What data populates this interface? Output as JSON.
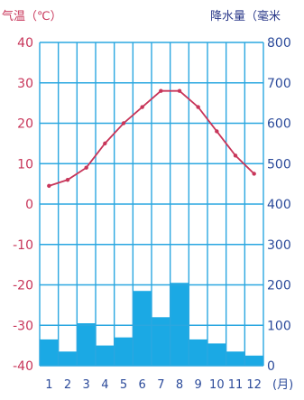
{
  "chart_data": {
    "type": "bar+line",
    "left_axis_label": "气温（℃）",
    "right_axis_label": "降水量（毫米",
    "x_unit_label": "(月)",
    "categories": [
      "1",
      "2",
      "3",
      "4",
      "5",
      "6",
      "7",
      "8",
      "9",
      "10",
      "11",
      "12"
    ],
    "temperature": {
      "unit": "℃",
      "ylim": [
        -40,
        40
      ],
      "ticks": [
        40,
        30,
        20,
        10,
        0,
        -10,
        -20,
        -30,
        -40
      ],
      "values": [
        4.5,
        6,
        9,
        15,
        20,
        24,
        28,
        28,
        24,
        18,
        12,
        7.5
      ]
    },
    "precipitation": {
      "unit": "毫米",
      "ylim": [
        0,
        800
      ],
      "ticks": [
        800,
        700,
        600,
        500,
        400,
        300,
        200,
        100,
        0
      ],
      "values": [
        65,
        35,
        105,
        50,
        70,
        185,
        120,
        205,
        65,
        55,
        35,
        25
      ]
    },
    "colors": {
      "temperature": "#c8365a",
      "precipitation_bar": "#1ba9e4",
      "grid": "#2aa7e0",
      "axis_text": "#2b4a9a",
      "left_label": "#c8365a",
      "right_label": "#2b3a8a",
      "panel_bg": "#ffffff"
    }
  }
}
